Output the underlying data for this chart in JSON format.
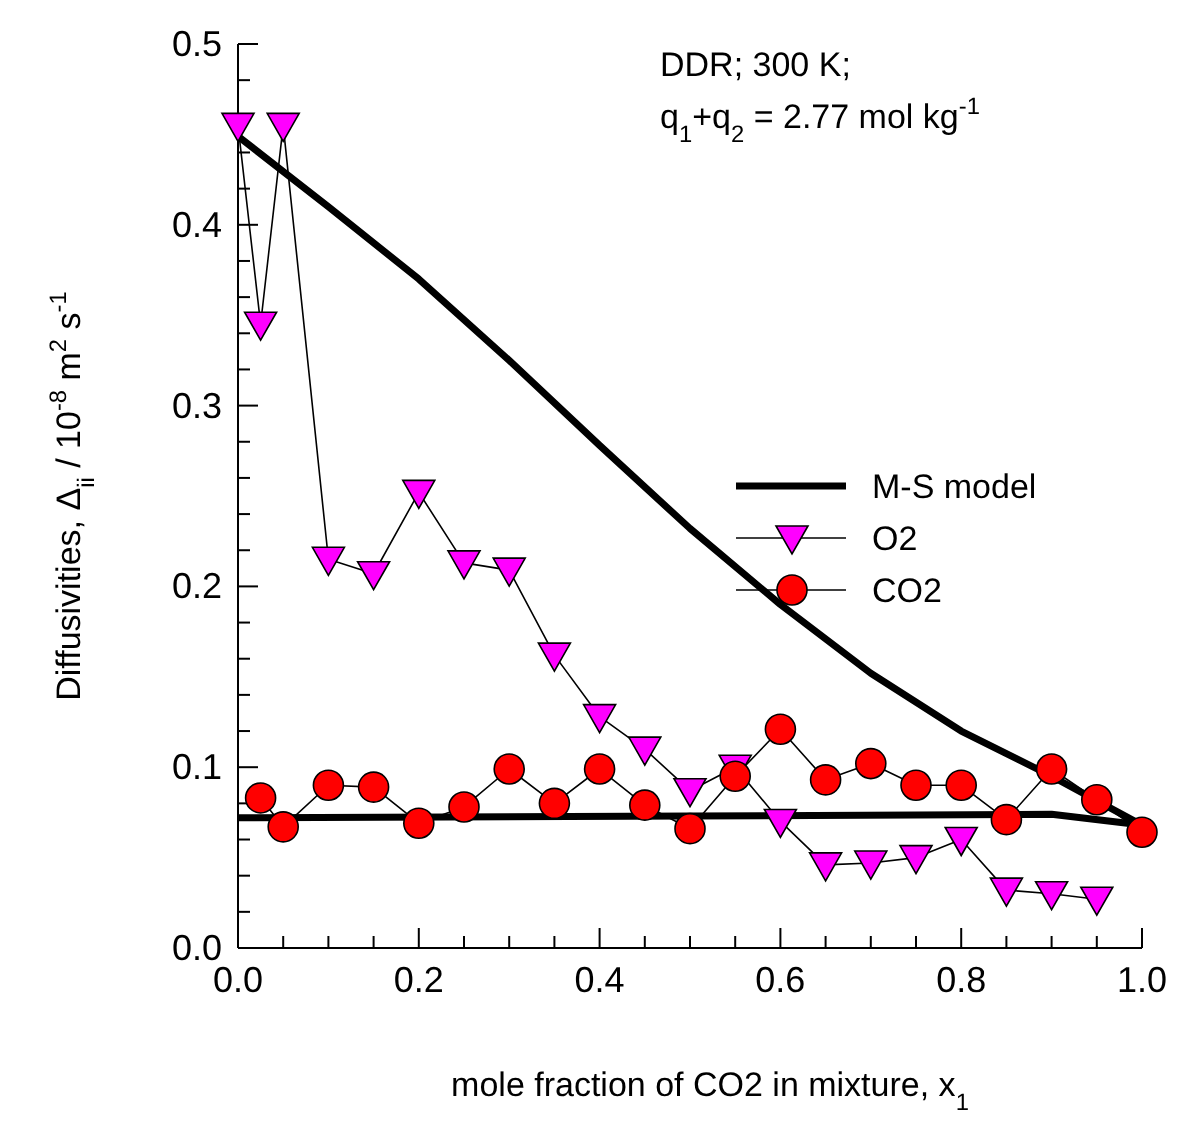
{
  "chart_data": {
    "type": "line",
    "xlabel": "mole fraction of CO2 in mixture, x$_{1}$",
    "ylabel": "Diffusivities, Δ$_{ii}$ / 10$^{-8}$ m$^{2}$ s$^{-1}$",
    "annotations": [
      "DDR; 300 K;",
      "q$_{1}$+q$_{2}$ = 2.77 mol kg$^{-1}$"
    ],
    "xlim": [
      0,
      1
    ],
    "ylim": [
      0,
      0.5
    ],
    "xticks": [
      {
        "value": 0,
        "label": "0.0"
      },
      {
        "value": 0.05,
        "label": null
      },
      {
        "value": 0.1,
        "label": null
      },
      {
        "value": 0.15,
        "label": null
      },
      0.2,
      {
        "value": 0.25,
        "label": null
      },
      {
        "value": 0.3,
        "label": null
      },
      {
        "value": 0.35,
        "label": null
      },
      0.4,
      {
        "value": 0.45,
        "label": null
      },
      {
        "value": 0.5,
        "label": null
      },
      {
        "value": 0.55,
        "label": null
      },
      0.6,
      {
        "value": 0.65,
        "label": null
      },
      {
        "value": 0.7,
        "label": null
      },
      {
        "value": 0.75,
        "label": null
      },
      0.8,
      {
        "value": 0.85,
        "label": null
      },
      {
        "value": 0.9,
        "label": null
      },
      {
        "value": 0.95,
        "label": null
      },
      {
        "value": 1,
        "label": "1.0"
      }
    ],
    "yticks": [
      {
        "value": 0,
        "label": "0.0"
      },
      {
        "value": 0.02,
        "label": null
      },
      {
        "value": 0.04,
        "label": null
      },
      {
        "value": 0.06,
        "label": null
      },
      {
        "value": 0.08,
        "label": null
      },
      0.1,
      {
        "value": 0.12,
        "label": null
      },
      {
        "value": 0.14,
        "label": null
      },
      {
        "value": 0.16,
        "label": null
      },
      {
        "value": 0.18,
        "label": null
      },
      0.2,
      {
        "value": 0.22,
        "label": null
      },
      {
        "value": 0.24,
        "label": null
      },
      {
        "value": 0.26,
        "label": null
      },
      {
        "value": 0.28,
        "label": null
      },
      0.3,
      {
        "value": 0.32,
        "label": null
      },
      {
        "value": 0.34,
        "label": null
      },
      {
        "value": 0.36,
        "label": null
      },
      {
        "value": 0.38,
        "label": null
      },
      0.4,
      {
        "value": 0.42,
        "label": null
      },
      {
        "value": 0.44,
        "label": null
      },
      {
        "value": 0.46,
        "label": null
      },
      {
        "value": 0.48,
        "label": null
      },
      0.5
    ],
    "grid": false,
    "legend": "right",
    "series": [
      {
        "name": "M-S model",
        "color": "#000000",
        "marker": "none",
        "x": [
          0,
          0.1,
          0.2,
          0.3,
          0.4,
          0.5,
          0.6,
          0.7,
          0.8,
          0.9,
          1.0
        ],
        "values": [
          0.449,
          0.41,
          0.37,
          0.325,
          0.278,
          0.232,
          0.19,
          0.152,
          0.12,
          0.095,
          0.068
        ]
      },
      {
        "color": "#000000",
        "marker": "none",
        "x": [
          0,
          0.5,
          0.9,
          1.0
        ],
        "values": [
          0.072,
          0.073,
          0.074,
          0.068
        ]
      },
      {
        "name": "O2",
        "color": "#ff00ff",
        "marker": "triangle",
        "x": [
          0,
          0.025,
          0.05,
          0.1,
          0.15,
          0.2,
          0.25,
          0.3,
          0.35,
          0.4,
          0.45,
          0.5,
          0.55,
          0.6,
          0.65,
          0.7,
          0.75,
          0.8,
          0.85,
          0.9,
          0.95
        ],
        "values": [
          0.455,
          0.345,
          0.455,
          0.215,
          0.207,
          0.252,
          0.213,
          0.209,
          0.162,
          0.128,
          0.11,
          0.087,
          0.1,
          0.07,
          0.046,
          0.047,
          0.05,
          0.06,
          0.032,
          0.03,
          0.027
        ]
      },
      {
        "name": "CO2",
        "color": "#ff0000",
        "marker": "circle",
        "x": [
          0.025,
          0.05,
          0.1,
          0.15,
          0.2,
          0.25,
          0.3,
          0.35,
          0.4,
          0.45,
          0.5,
          0.55,
          0.6,
          0.65,
          0.7,
          0.75,
          0.8,
          0.85,
          0.9,
          0.95,
          1.0
        ],
        "values": [
          0.083,
          0.067,
          0.09,
          0.089,
          0.069,
          0.078,
          0.099,
          0.08,
          0.099,
          0.079,
          0.066,
          0.095,
          0.121,
          0.093,
          0.102,
          0.09,
          0.09,
          0.071,
          0.099,
          0.082,
          0.064
        ]
      }
    ]
  }
}
